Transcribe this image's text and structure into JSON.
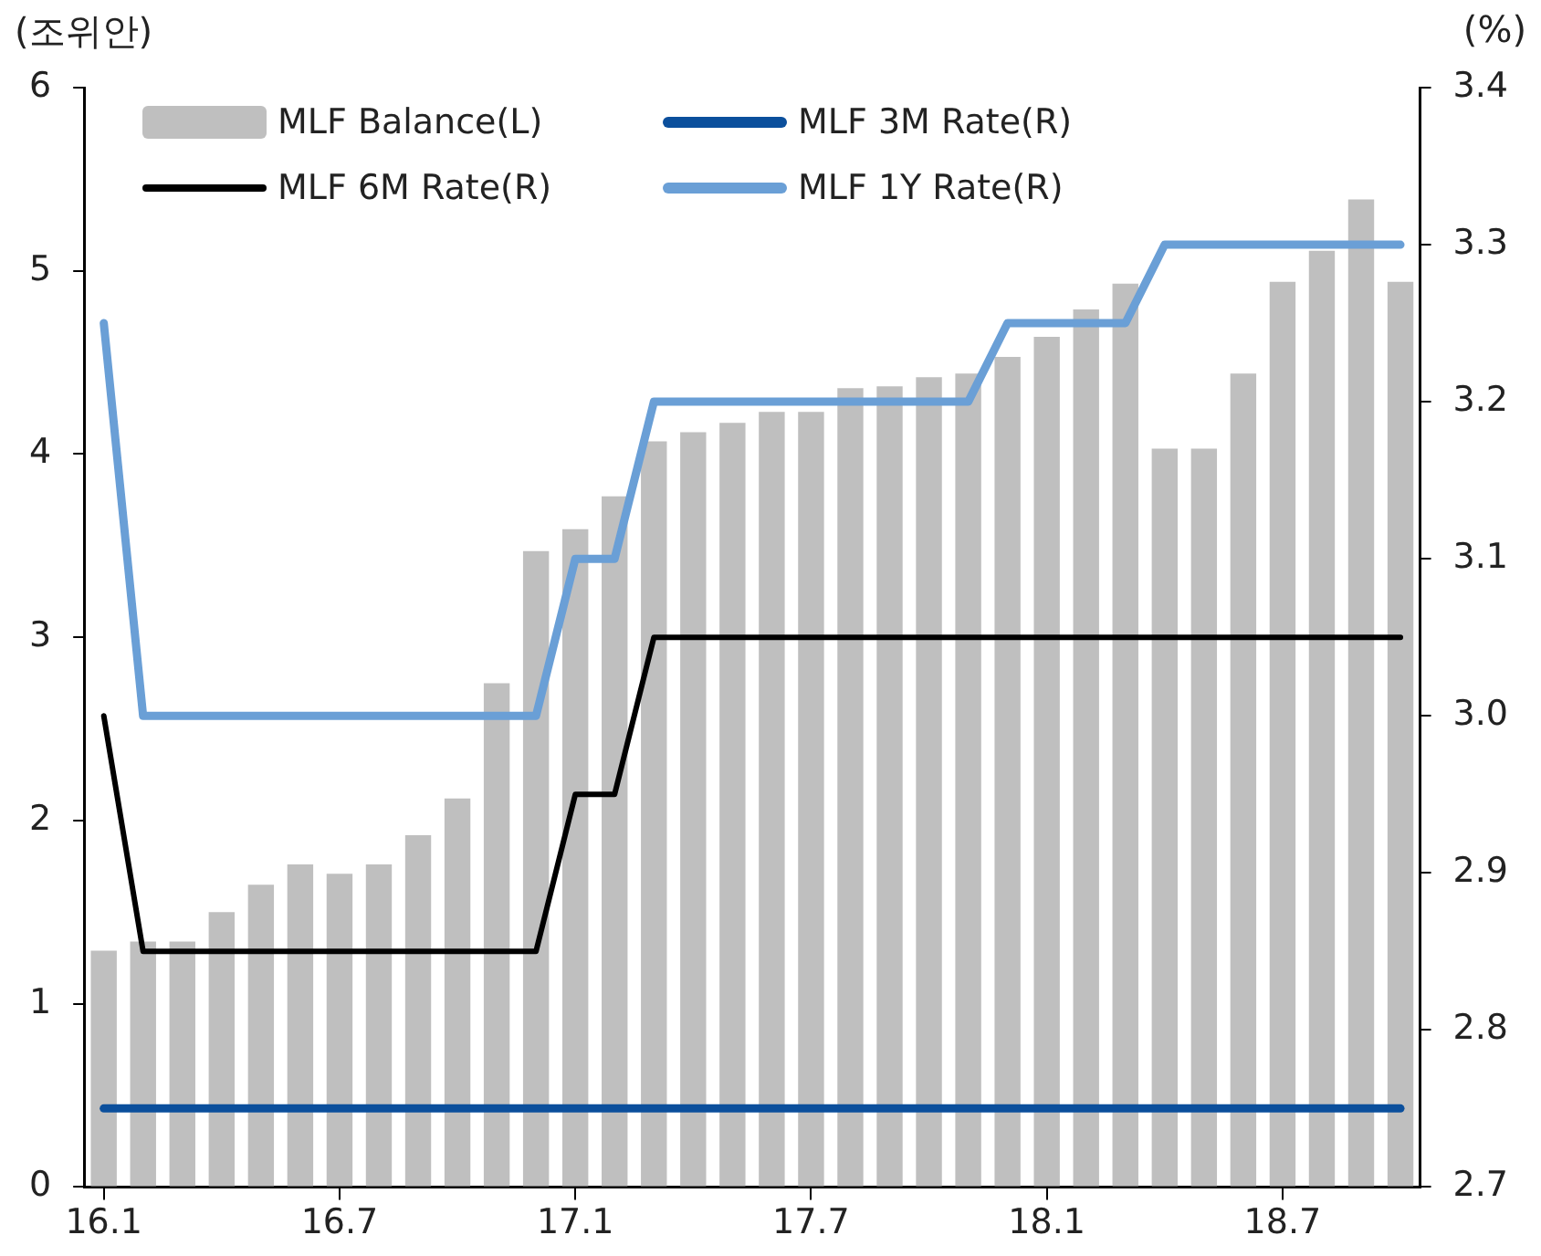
{
  "chart_data": {
    "type": "bar",
    "ylabel": "(조위안)",
    "y2label": "(%)",
    "categories": [
      "16.1",
      null,
      null,
      null,
      null,
      null,
      "16.7",
      null,
      null,
      null,
      null,
      null,
      "17.1",
      null,
      null,
      null,
      null,
      null,
      "17.7",
      null,
      null,
      null,
      null,
      null,
      "18.1",
      null,
      null,
      null,
      null,
      null,
      "18.7",
      null,
      null,
      null
    ],
    "series": [
      {
        "name": "MLF Balance(L)",
        "color": "#bfbfbf",
        "values": [
          1.29,
          1.34,
          1.34,
          1.5,
          1.65,
          1.76,
          1.71,
          1.76,
          1.92,
          2.12,
          2.75,
          3.47,
          3.59,
          3.77,
          4.07,
          4.12,
          4.17,
          4.23,
          4.23,
          4.36,
          4.37,
          4.42,
          4.44,
          4.53,
          4.64,
          4.79,
          4.93,
          4.03,
          4.03,
          4.44,
          4.94,
          5.11,
          5.39,
          4.94
        ]
      },
      {
        "name": "MLF 3M Rate(R)",
        "type": "line",
        "axis": "y2",
        "color": "#0b4f9c",
        "values": [
          2.75,
          2.75,
          2.75,
          2.75,
          2.75,
          2.75,
          2.75,
          2.75,
          2.75,
          2.75,
          2.75,
          2.75,
          2.75,
          2.75,
          2.75,
          2.75,
          2.75,
          2.75,
          2.75,
          2.75,
          2.75,
          2.75,
          2.75,
          2.75,
          2.75,
          2.75,
          2.75,
          2.75,
          2.75,
          2.75,
          2.75,
          2.75,
          2.75,
          2.75
        ]
      },
      {
        "name": "MLF 6M Rate(R)",
        "type": "line",
        "axis": "y2",
        "color": "#000000",
        "values": [
          3.0,
          2.85,
          2.85,
          2.85,
          2.85,
          2.85,
          2.85,
          2.85,
          2.85,
          2.85,
          2.85,
          2.85,
          2.95,
          2.95,
          3.05,
          3.05,
          3.05,
          3.05,
          3.05,
          3.05,
          3.05,
          3.05,
          3.05,
          3.05,
          3.05,
          3.05,
          3.05,
          3.05,
          3.05,
          3.05,
          3.05,
          3.05,
          3.05,
          3.05
        ]
      },
      {
        "name": "MLF 1Y Rate(R)",
        "type": "line",
        "axis": "y2",
        "color": "#6a9fd6",
        "values": [
          3.25,
          3.0,
          3.0,
          3.0,
          3.0,
          3.0,
          3.0,
          3.0,
          3.0,
          3.0,
          3.0,
          3.0,
          3.1,
          3.1,
          3.2,
          3.2,
          3.2,
          3.2,
          3.2,
          3.2,
          3.2,
          3.2,
          3.2,
          3.25,
          3.25,
          3.25,
          3.25,
          3.3,
          3.3,
          3.3,
          3.3,
          3.3,
          3.3,
          3.3
        ]
      }
    ],
    "ylim": [
      0,
      6
    ],
    "yticks": [
      0,
      1,
      2,
      3,
      4,
      5,
      6
    ],
    "y2lim": [
      2.7,
      3.4
    ],
    "y2ticks": [
      2.7,
      2.8,
      2.9,
      {
        "value": 3,
        "label": "3.0"
      },
      3.1,
      3.2,
      3.3,
      3.4
    ],
    "legend": "top left",
    "marker": "none"
  }
}
